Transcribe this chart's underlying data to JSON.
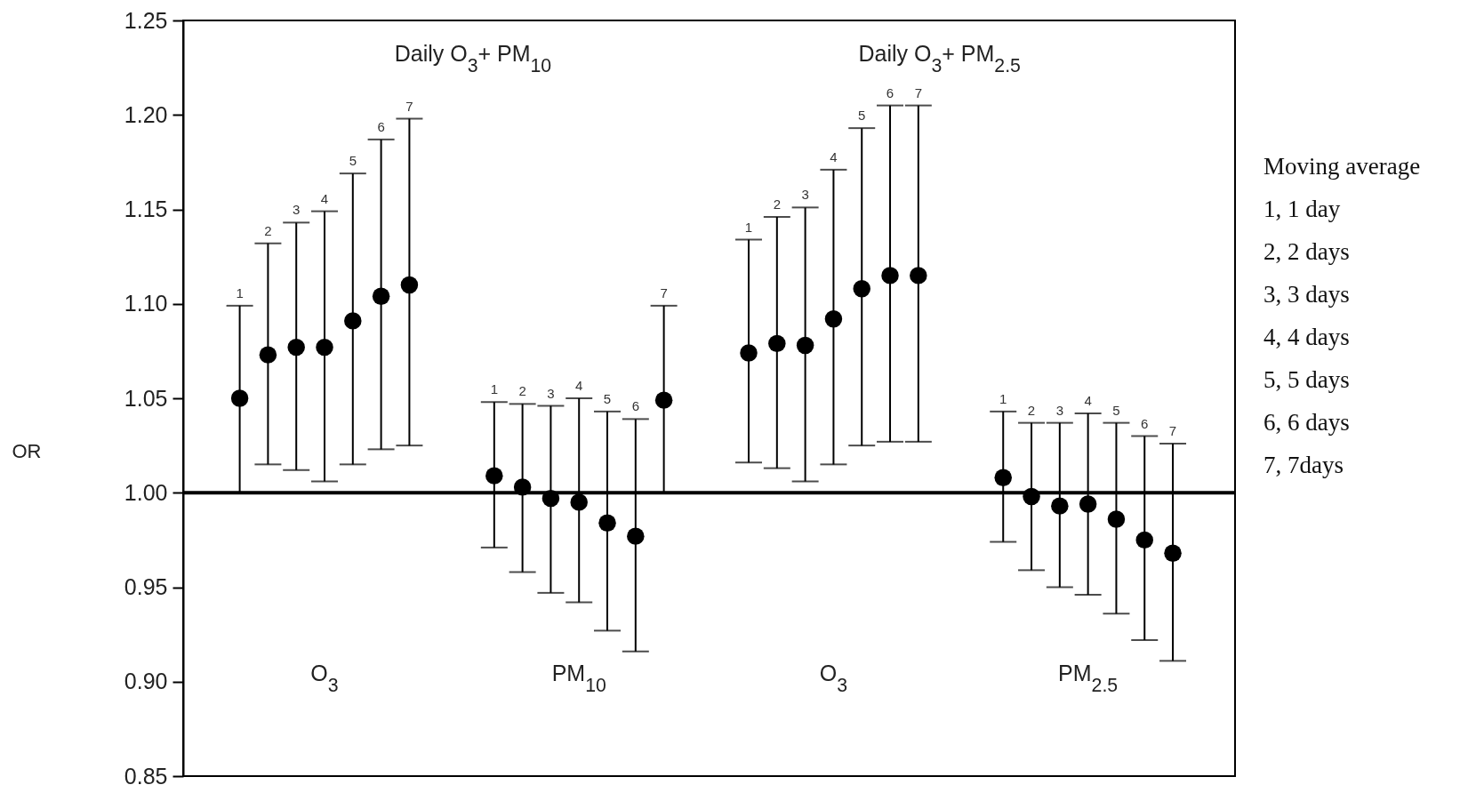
{
  "chart_data": {
    "type": "scatter",
    "ylabel": "OR",
    "categories": [
      "1",
      "2",
      "3",
      "4",
      "5",
      "6",
      "7",
      null,
      null,
      "1",
      "2",
      "3",
      "4",
      "5",
      "6",
      "7",
      null,
      null,
      "1",
      "2",
      "3",
      "4",
      "5",
      "6",
      "7",
      null,
      null,
      "1",
      "2",
      "3",
      "4",
      "5",
      "6",
      "7"
    ],
    "series": [
      {
        "color": "#000000",
        "values": [
          1.05,
          1.073,
          1.077,
          1.077,
          1.091,
          1.104,
          1.11,
          null,
          null,
          null,
          null,
          null,
          null,
          null,
          null,
          null,
          null,
          null,
          null,
          null,
          null,
          null,
          null,
          null,
          null,
          null,
          null,
          null,
          null,
          null,
          null,
          null,
          null,
          null
        ],
        "errors": [
          [
            1.0,
            1.099
          ],
          [
            1.015,
            1.132
          ],
          [
            1.012,
            1.143
          ],
          [
            1.006,
            1.149
          ],
          [
            1.015,
            1.169
          ],
          [
            1.023,
            1.187
          ],
          [
            1.025,
            1.198
          ],
          null,
          null,
          null,
          null,
          null,
          null,
          null,
          null,
          null,
          null,
          null,
          null,
          null,
          null,
          null,
          null,
          null,
          null,
          null,
          null,
          null,
          null,
          null,
          null,
          null,
          null,
          null
        ]
      },
      {
        "color": "#000000",
        "values": [
          null,
          null,
          null,
          null,
          null,
          null,
          null,
          null,
          null,
          1.009,
          1.003,
          0.997,
          0.995,
          0.984,
          0.977,
          1.049,
          null,
          null,
          null,
          null,
          null,
          null,
          null,
          null,
          null,
          null,
          null,
          null,
          null,
          null,
          null,
          null,
          null,
          null
        ],
        "errors": [
          null,
          null,
          null,
          null,
          null,
          null,
          null,
          null,
          null,
          [
            0.971,
            1.048
          ],
          [
            0.958,
            1.047
          ],
          [
            0.947,
            1.046
          ],
          [
            0.942,
            1.05
          ],
          [
            0.927,
            1.043
          ],
          [
            0.916,
            1.039
          ],
          [
            1.0,
            1.099
          ],
          null,
          null,
          null,
          null,
          null,
          null,
          null,
          null,
          null,
          null,
          null,
          null,
          null,
          null,
          null,
          null,
          null,
          null
        ]
      },
      {
        "color": "#000000",
        "values": [
          null,
          null,
          null,
          null,
          null,
          null,
          null,
          null,
          null,
          null,
          null,
          null,
          null,
          null,
          null,
          null,
          null,
          null,
          1.074,
          1.079,
          1.078,
          1.092,
          1.108,
          1.115,
          1.115,
          null,
          null,
          null,
          null,
          null,
          null,
          null,
          null,
          null
        ],
        "errors": [
          null,
          null,
          null,
          null,
          null,
          null,
          null,
          null,
          null,
          null,
          null,
          null,
          null,
          null,
          null,
          null,
          null,
          null,
          [
            1.016,
            1.134
          ],
          [
            1.013,
            1.146
          ],
          [
            1.006,
            1.151
          ],
          [
            1.015,
            1.171
          ],
          [
            1.025,
            1.193
          ],
          [
            1.027,
            1.205
          ],
          [
            1.027,
            1.205
          ],
          null,
          null,
          null,
          null,
          null,
          null,
          null,
          null,
          null
        ]
      },
      {
        "color": "#000000",
        "values": [
          null,
          null,
          null,
          null,
          null,
          null,
          null,
          null,
          null,
          null,
          null,
          null,
          null,
          null,
          null,
          null,
          null,
          null,
          null,
          null,
          null,
          null,
          null,
          null,
          null,
          null,
          null,
          1.008,
          0.998,
          0.993,
          0.994,
          0.986,
          0.975,
          0.968
        ],
        "errors": [
          null,
          null,
          null,
          null,
          null,
          null,
          null,
          null,
          null,
          null,
          null,
          null,
          null,
          null,
          null,
          null,
          null,
          null,
          null,
          null,
          null,
          null,
          null,
          null,
          null,
          null,
          null,
          [
            0.974,
            1.043
          ],
          [
            0.959,
            1.037
          ],
          [
            0.95,
            1.037
          ],
          [
            0.946,
            1.042
          ],
          [
            0.936,
            1.037
          ],
          [
            0.922,
            1.03
          ],
          [
            0.911,
            1.026
          ]
        ]
      }
    ],
    "ylim": [
      0.85,
      1.25
    ],
    "yticks": [
      {
        "value": 0.85,
        "label": "0.85"
      },
      {
        "value": 0.9,
        "label": "0.90"
      },
      {
        "value": 0.95,
        "label": "0.95"
      },
      {
        "value": 1,
        "label": "1.00"
      },
      {
        "value": 1.05,
        "label": "1.05"
      },
      {
        "value": 1.1,
        "label": "1.10"
      },
      {
        "value": 1.15,
        "label": "1.15"
      },
      {
        "value": 1.2,
        "label": "1.20"
      },
      {
        "value": 1.25,
        "label": "1.25"
      }
    ],
    "ref_lines": [
      {
        "axis": "y",
        "value": 1
      }
    ],
    "annotations": [
      "Daily O$_{3}$+ PM$_{10}$",
      "Daily O$_{3}$+ PM$_{2.5}$",
      "Moving average",
      "1, 1 day",
      "2, 2 days",
      "3, 3 days",
      "4, 4 days",
      "5, 5 days",
      "6, 6 days",
      "7, 7days",
      "O$_{3}$",
      "PM$_{10}$",
      "O$_{3}$",
      "PM$_{2.5}$"
    ],
    "tick_labels": "y",
    "grid": false,
    "marker": "circle"
  }
}
